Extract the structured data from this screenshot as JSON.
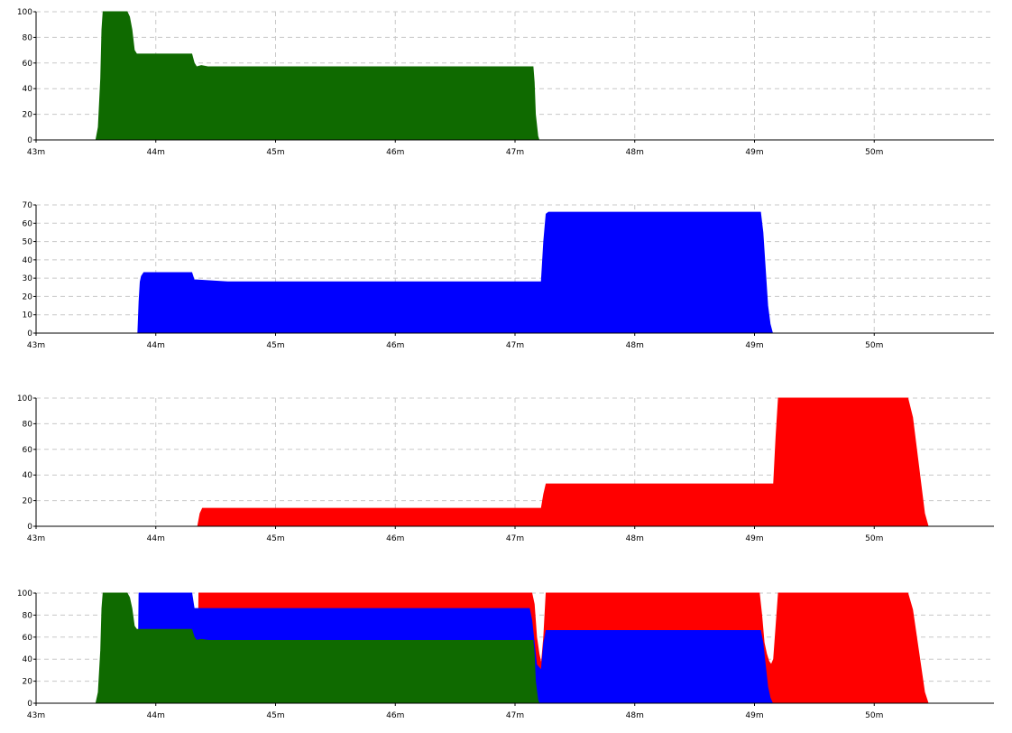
{
  "chart_data": [
    {
      "type": "area",
      "xlim": [
        43,
        51
      ],
      "ylim": [
        0,
        100
      ],
      "xticks": [
        43,
        44,
        45,
        46,
        47,
        48,
        49,
        50
      ],
      "xtick_labels": [
        "43m",
        "44m",
        "45m",
        "46m",
        "47m",
        "48m",
        "49m",
        "50m"
      ],
      "yticks": [
        0,
        20,
        40,
        60,
        80,
        100
      ],
      "ytick_labels": [
        "0",
        "20",
        "40",
        "60",
        "80",
        "100"
      ],
      "grid": true,
      "series": [
        {
          "color": "#0f6a00",
          "points": [
            [
              43.5,
              0
            ],
            [
              43.52,
              10
            ],
            [
              43.54,
              48
            ],
            [
              43.55,
              86
            ],
            [
              43.56,
              100
            ],
            [
              43.76,
              100
            ],
            [
              43.78,
              96
            ],
            [
              43.8,
              86
            ],
            [
              43.82,
              70
            ],
            [
              43.84,
              67
            ],
            [
              44.3,
              67
            ],
            [
              44.32,
              60
            ],
            [
              44.34,
              57
            ],
            [
              44.38,
              58
            ],
            [
              44.44,
              57
            ],
            [
              47.15,
              57
            ],
            [
              47.16,
              45
            ],
            [
              47.17,
              20
            ],
            [
              47.19,
              3
            ],
            [
              47.2,
              0
            ]
          ]
        }
      ]
    },
    {
      "type": "area",
      "xlim": [
        43,
        51
      ],
      "ylim": [
        0,
        70
      ],
      "xticks": [
        43,
        44,
        45,
        46,
        47,
        48,
        49,
        50
      ],
      "xtick_labels": [
        "43m",
        "44m",
        "45m",
        "46m",
        "47m",
        "48m",
        "49m",
        "50m"
      ],
      "yticks": [
        0,
        10,
        20,
        30,
        40,
        50,
        60,
        70
      ],
      "ytick_labels": [
        "0",
        "10",
        "20",
        "30",
        "40",
        "50",
        "60",
        "70"
      ],
      "grid": true,
      "series": [
        {
          "color": "#0000ff",
          "points": [
            [
              43.85,
              0
            ],
            [
              43.86,
              17
            ],
            [
              43.87,
              28
            ],
            [
              43.88,
              31
            ],
            [
              43.9,
              33
            ],
            [
              44.3,
              33
            ],
            [
              44.32,
              29
            ],
            [
              44.34,
              29
            ],
            [
              44.6,
              28
            ],
            [
              47.22,
              28
            ],
            [
              47.24,
              50
            ],
            [
              47.26,
              65
            ],
            [
              47.28,
              66
            ],
            [
              49.05,
              66
            ],
            [
              49.07,
              55
            ],
            [
              49.09,
              35
            ],
            [
              49.11,
              15
            ],
            [
              49.13,
              5
            ],
            [
              49.15,
              0
            ]
          ]
        }
      ]
    },
    {
      "type": "area",
      "xlim": [
        43,
        51
      ],
      "ylim": [
        0,
        100
      ],
      "xticks": [
        43,
        44,
        45,
        46,
        47,
        48,
        49,
        50
      ],
      "xtick_labels": [
        "43m",
        "44m",
        "45m",
        "46m",
        "47m",
        "48m",
        "49m",
        "50m"
      ],
      "yticks": [
        0,
        20,
        40,
        60,
        80,
        100
      ],
      "ytick_labels": [
        "0",
        "20",
        "40",
        "60",
        "80",
        "100"
      ],
      "grid": true,
      "series": [
        {
          "color": "#ff0000",
          "points": [
            [
              44.35,
              0
            ],
            [
              44.37,
              10
            ],
            [
              44.39,
              14
            ],
            [
              47.22,
              14
            ],
            [
              47.24,
              25
            ],
            [
              47.26,
              33
            ],
            [
              49.16,
              33
            ],
            [
              49.18,
              70
            ],
            [
              49.2,
              100
            ],
            [
              50.28,
              100
            ],
            [
              50.32,
              85
            ],
            [
              50.36,
              55
            ],
            [
              50.4,
              25
            ],
            [
              50.42,
              10
            ],
            [
              50.45,
              0
            ]
          ]
        }
      ]
    },
    {
      "type": "area",
      "xlim": [
        43,
        51
      ],
      "ylim": [
        0,
        100
      ],
      "xticks": [
        43,
        44,
        45,
        46,
        47,
        48,
        49,
        50
      ],
      "xtick_labels": [
        "43m",
        "44m",
        "45m",
        "46m",
        "47m",
        "48m",
        "49m",
        "50m"
      ],
      "yticks": [
        0,
        20,
        40,
        60,
        80,
        100
      ],
      "ytick_labels": [
        "0",
        "20",
        "40",
        "60",
        "80",
        "100"
      ],
      "grid": true,
      "series": [
        {
          "color": "#ff0000",
          "points": [
            [
              44.35,
              0
            ],
            [
              44.36,
              100
            ],
            [
              47.14,
              100
            ],
            [
              47.16,
              90
            ],
            [
              47.18,
              60
            ],
            [
              47.2,
              45
            ],
            [
              47.22,
              35
            ],
            [
              47.24,
              60
            ],
            [
              47.26,
              100
            ],
            [
              49.04,
              100
            ],
            [
              49.06,
              80
            ],
            [
              49.08,
              55
            ],
            [
              49.1,
              45
            ],
            [
              49.12,
              38
            ],
            [
              49.14,
              35
            ],
            [
              49.16,
              40
            ],
            [
              49.18,
              70
            ],
            [
              49.2,
              100
            ],
            [
              50.28,
              100
            ],
            [
              50.32,
              85
            ],
            [
              50.36,
              55
            ],
            [
              50.4,
              25
            ],
            [
              50.42,
              10
            ],
            [
              50.45,
              0
            ]
          ]
        },
        {
          "color": "#0000ff",
          "points": [
            [
              43.85,
              0
            ],
            [
              43.86,
              100
            ],
            [
              44.3,
              100
            ],
            [
              44.32,
              86
            ],
            [
              47.12,
              86
            ],
            [
              47.14,
              75
            ],
            [
              47.16,
              55
            ],
            [
              47.18,
              35
            ],
            [
              47.22,
              30
            ],
            [
              47.24,
              55
            ],
            [
              47.26,
              66
            ],
            [
              49.05,
              66
            ],
            [
              49.07,
              55
            ],
            [
              49.09,
              35
            ],
            [
              49.11,
              15
            ],
            [
              49.13,
              5
            ],
            [
              49.15,
              0
            ]
          ]
        },
        {
          "color": "#0f6a00",
          "points": [
            [
              43.5,
              0
            ],
            [
              43.52,
              10
            ],
            [
              43.54,
              48
            ],
            [
              43.55,
              86
            ],
            [
              43.56,
              100
            ],
            [
              43.76,
              100
            ],
            [
              43.78,
              96
            ],
            [
              43.8,
              86
            ],
            [
              43.82,
              70
            ],
            [
              43.84,
              67
            ],
            [
              44.3,
              67
            ],
            [
              44.32,
              60
            ],
            [
              44.34,
              57
            ],
            [
              44.38,
              58
            ],
            [
              44.44,
              57
            ],
            [
              47.15,
              57
            ],
            [
              47.16,
              45
            ],
            [
              47.17,
              20
            ],
            [
              47.19,
              3
            ],
            [
              47.2,
              0
            ]
          ]
        }
      ]
    }
  ]
}
